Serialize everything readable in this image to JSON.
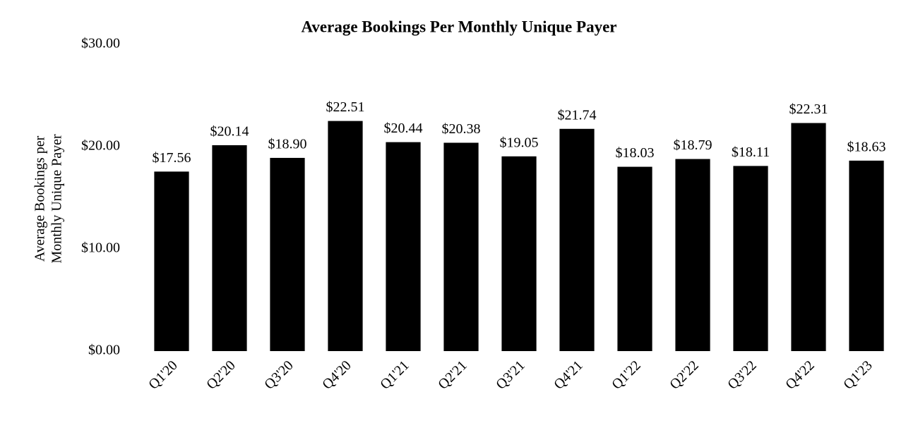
{
  "chart_data": {
    "type": "bar",
    "title": "Average Bookings Per Monthly Unique Payer",
    "y_label": [
      "Average Bookings per",
      "Monthly Unique Payer"
    ],
    "categories": [
      "Q1'20",
      "Q2'20",
      "Q3'20",
      "Q4'20",
      "Q1'21",
      "Q2'21",
      "Q3'21",
      "Q4'21",
      "Q1'22",
      "Q2'22",
      "Q3'22",
      "Q4'22",
      "Q1'23"
    ],
    "values": [
      17.56,
      20.14,
      18.9,
      22.51,
      20.44,
      20.38,
      19.05,
      21.74,
      18.03,
      18.79,
      18.11,
      22.31,
      18.63
    ],
    "value_labels": [
      "$17.56",
      "$20.14",
      "$18.90",
      "$22.51",
      "$20.44",
      "$20.38",
      "$19.05",
      "$21.74",
      "$18.03",
      "$18.79",
      "$18.11",
      "$22.31",
      "$18.63"
    ],
    "color": "#000000",
    "ylim": [
      0,
      30
    ],
    "yticks": [
      {
        "value": 0,
        "label": "$0.00"
      },
      {
        "value": 10,
        "label": "$10.00"
      },
      {
        "value": 20,
        "label": "$20.00"
      },
      {
        "value": 30,
        "label": "$30.00"
      }
    ],
    "grid": false
  }
}
